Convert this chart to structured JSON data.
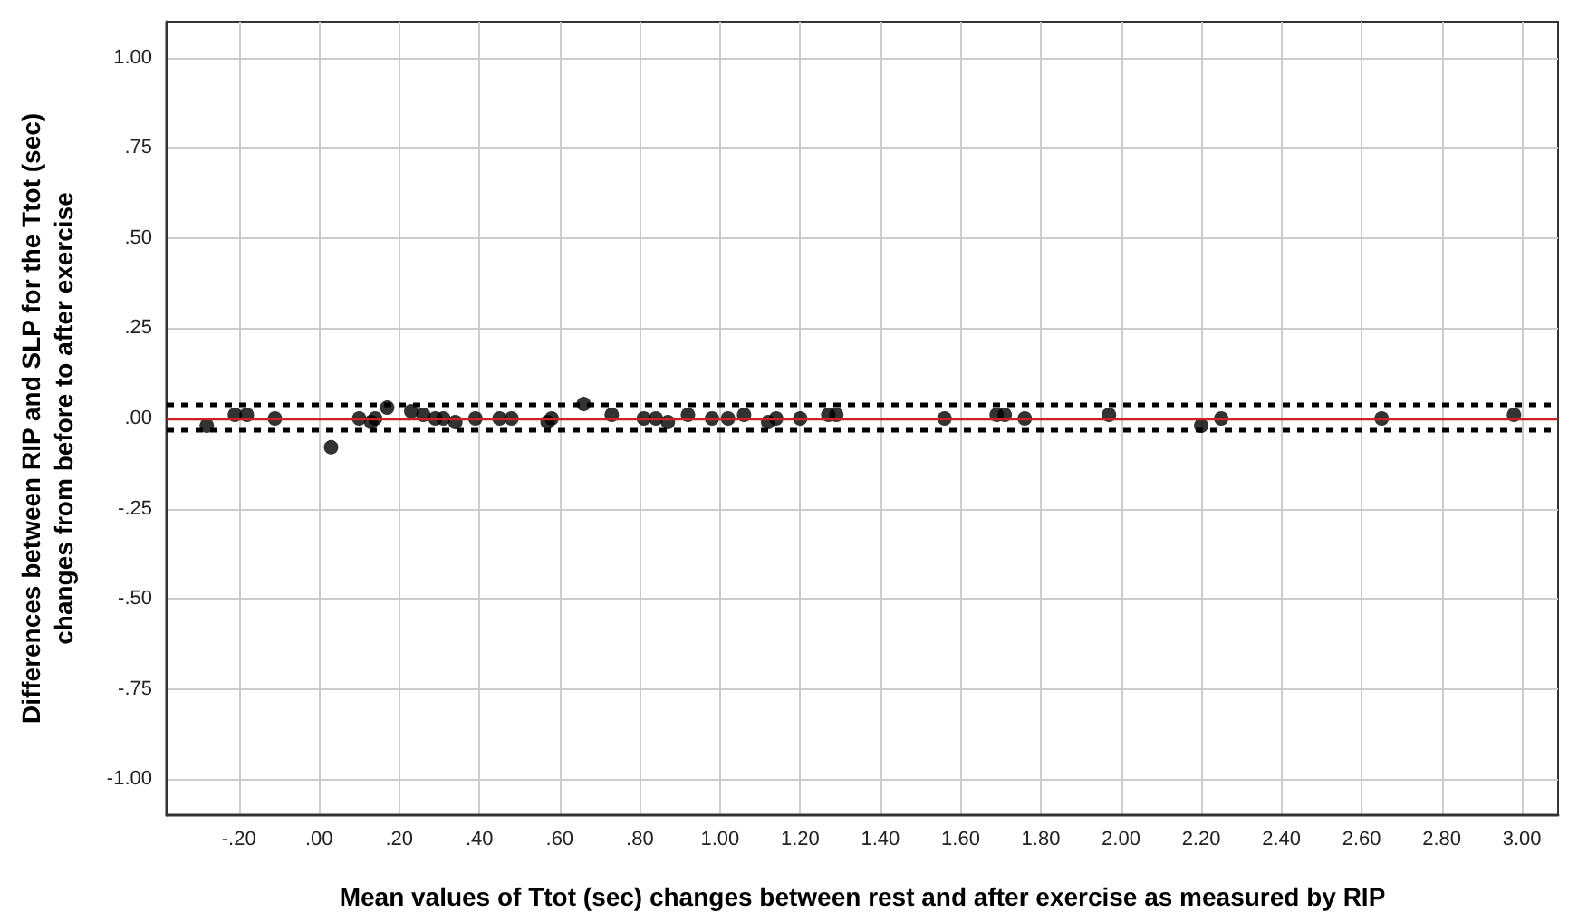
{
  "chart_data": {
    "type": "scatter",
    "xlabel": "Mean values of Ttot (sec) changes between rest and after exercise as measured by RIP",
    "ylabel": "Differences between RIP and SLP for the Ttot (sec)\nchanges from before to after exercise",
    "x": [
      -0.28,
      -0.21,
      -0.18,
      -0.11,
      0.03,
      0.1,
      0.13,
      0.14,
      0.17,
      0.23,
      0.26,
      0.29,
      0.31,
      0.34,
      0.39,
      0.45,
      0.48,
      0.57,
      0.58,
      0.66,
      0.73,
      0.81,
      0.84,
      0.87,
      0.92,
      0.98,
      1.02,
      1.06,
      1.12,
      1.14,
      1.2,
      1.27,
      1.29,
      1.56,
      1.69,
      1.71,
      1.76,
      1.97,
      2.2,
      2.25,
      2.65,
      2.98
    ],
    "series": [
      {
        "color": "#000000",
        "values": [
          -0.02,
          0.01,
          0.01,
          0.0,
          -0.08,
          0.0,
          -0.01,
          0.0,
          0.03,
          0.02,
          0.01,
          0.0,
          0.0,
          -0.01,
          0.0,
          0.0,
          0.0,
          -0.01,
          0.0,
          0.04,
          0.01,
          0.0,
          0.0,
          -0.01,
          0.01,
          0.0,
          0.0,
          0.01,
          -0.01,
          0.0,
          0.0,
          0.01,
          0.01,
          0.0,
          0.01,
          0.01,
          0.0,
          0.01,
          -0.02,
          0.0,
          0.0,
          0.01
        ]
      }
    ],
    "xlim": [
      -0.38,
      3.09
    ],
    "xticks": [
      {
        "value": -0.2,
        "label": "-.20"
      },
      {
        "value": 0,
        "label": ".00"
      },
      {
        "value": 0.2,
        "label": ".20"
      },
      {
        "value": 0.4,
        "label": ".40"
      },
      {
        "value": 0.6,
        "label": ".60"
      },
      {
        "value": 0.8,
        "label": ".80"
      },
      {
        "value": 1.0,
        "label": "1.00"
      },
      {
        "value": 1.2,
        "label": "1.20"
      },
      {
        "value": 1.4,
        "label": "1.40"
      },
      {
        "value": 1.6,
        "label": "1.60"
      },
      {
        "value": 1.8,
        "label": "1.80"
      },
      {
        "value": 2.0,
        "label": "2.00"
      },
      {
        "value": 2.2,
        "label": "2.20"
      },
      {
        "value": 2.4,
        "label": "2.40"
      },
      {
        "value": 2.6,
        "label": "2.60"
      },
      {
        "value": 2.8,
        "label": "2.80"
      },
      {
        "value": 3.0,
        "label": "3.00"
      }
    ],
    "ylim": [
      -1.1,
      1.1
    ],
    "yticks": [
      {
        "value": -1,
        "label": "-1.00"
      },
      {
        "value": -0.75,
        "label": "-.75"
      },
      {
        "value": -0.5,
        "label": "-.50"
      },
      {
        "value": -0.25,
        "label": "-.25"
      },
      {
        "value": 0,
        "label": ".00"
      },
      {
        "value": 0.25,
        "label": ".25"
      },
      {
        "value": 0.5,
        "label": ".50"
      },
      {
        "value": 0.75,
        "label": ".75"
      },
      {
        "value": 1,
        "label": "1.00"
      }
    ],
    "ref_lines": [
      {
        "axis": "y",
        "value": 0,
        "color": "#cc2222",
        "line_style": "solid"
      },
      {
        "axis": "y",
        "value": 0.035,
        "color": "#000000",
        "line_style": "dashed"
      },
      {
        "axis": "y",
        "value": -0.025,
        "color": "#000000",
        "line_style": "dashed"
      }
    ],
    "grid": true,
    "marker": "circle"
  }
}
